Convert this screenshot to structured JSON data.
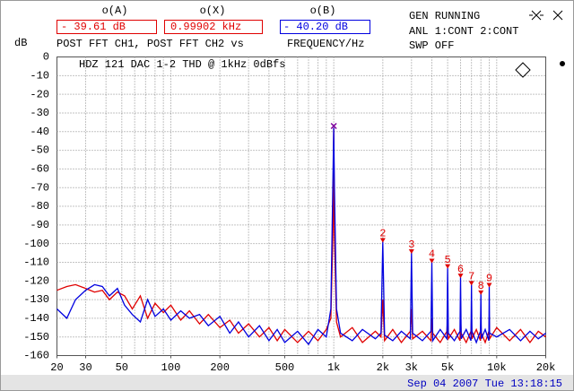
{
  "header": {
    "readouts": [
      {
        "name": "o(A)",
        "value": "- 39.61 dB",
        "color": "#e00000"
      },
      {
        "name": "o(X)",
        "value": "0.99902 kHz",
        "color": "#e00000"
      },
      {
        "name": "o(B)",
        "value": "- 40.20 dB",
        "color": "#0000e0"
      }
    ],
    "y_unit": "dB",
    "trace_label": "POST FFT CH1, POST FFT CH2 vs",
    "x_label": "FREQUENCY/Hz",
    "status": [
      "GEN RUNNING",
      "ANL 1:CONT 2:CONT",
      "SWP OFF"
    ]
  },
  "chart_data": {
    "type": "line",
    "title": "HDZ 121 DAC 1-2 THD @ 1kHz 0dBfs",
    "log_x": true,
    "grid": true,
    "xlim": [
      20,
      20000
    ],
    "ylim": [
      -160,
      0
    ],
    "yticks": [
      0,
      -10,
      -20,
      -30,
      -40,
      -50,
      -60,
      -70,
      -80,
      -90,
      -100,
      -110,
      -120,
      -130,
      -140,
      -150,
      -160
    ],
    "xticks": [
      20,
      30,
      50,
      100,
      200,
      500,
      {
        "value": 1000,
        "label": "1k"
      },
      {
        "value": 2000,
        "label": "2k"
      },
      {
        "value": 3000,
        "label": "3k"
      },
      {
        "value": 5000,
        "label": "5k"
      },
      {
        "value": 10000,
        "label": "10k"
      },
      {
        "value": 20000,
        "label": "20k"
      }
    ],
    "x": [
      20,
      23,
      26,
      30,
      34,
      38,
      42,
      47,
      52,
      58,
      65,
      72,
      80,
      90,
      100,
      115,
      130,
      150,
      170,
      200,
      230,
      260,
      300,
      350,
      400,
      450,
      500,
      600,
      700,
      800,
      900,
      960,
      990,
      1000,
      1010,
      1040,
      1100,
      1300,
      1500,
      1800,
      1950,
      2000,
      2050,
      2300,
      2600,
      2950,
      3000,
      3050,
      3500,
      3950,
      4000,
      4050,
      4500,
      4950,
      5000,
      5050,
      5500,
      5950,
      6000,
      6050,
      6500,
      6950,
      7000,
      7050,
      7500,
      7950,
      8000,
      8050,
      8500,
      8950,
      9000,
      9050,
      10000,
      12000,
      14000,
      16000,
      18000,
      20000
    ],
    "series": [
      {
        "color": "#e00000",
        "values": [
          -125,
          -123,
          -122,
          -124,
          -126,
          -125,
          -130,
          -126,
          -128,
          -135,
          -128,
          -140,
          -132,
          -137,
          -133,
          -141,
          -136,
          -143,
          -138,
          -145,
          -141,
          -148,
          -143,
          -150,
          -145,
          -152,
          -146,
          -153,
          -147,
          -152,
          -146,
          -140,
          -90,
          -38,
          -95,
          -142,
          -150,
          -145,
          -153,
          -147,
          -150,
          -130,
          -152,
          -146,
          -153,
          -147,
          -135,
          -151,
          -147,
          -152,
          -140,
          -148,
          -153,
          -147,
          -140,
          -151,
          -146,
          -152,
          -138,
          -148,
          -153,
          -147,
          -140,
          -151,
          -146,
          -152,
          -142,
          -148,
          -153,
          -147,
          -140,
          -151,
          -145,
          -152,
          -146,
          -153,
          -147,
          -150
        ]
      },
      {
        "color": "#0000e0",
        "values": [
          -135,
          -140,
          -130,
          -125,
          -122,
          -123,
          -128,
          -124,
          -133,
          -138,
          -142,
          -130,
          -139,
          -135,
          -141,
          -136,
          -140,
          -138,
          -144,
          -139,
          -148,
          -142,
          -150,
          -144,
          -152,
          -146,
          -153,
          -147,
          -154,
          -146,
          -150,
          -135,
          -60,
          -38,
          -70,
          -135,
          -148,
          -152,
          -146,
          -151,
          -148,
          -99,
          -149,
          -152,
          -147,
          -151,
          -105,
          -148,
          -152,
          -147,
          -110,
          -152,
          -146,
          -151,
          -113,
          -148,
          -152,
          -147,
          -118,
          -151,
          -146,
          -152,
          -122,
          -147,
          -153,
          -147,
          -127,
          -151,
          -146,
          -152,
          -123,
          -148,
          -150,
          -146,
          -152,
          -147,
          -151,
          -148
        ]
      }
    ],
    "cursor": {
      "x": 1000,
      "value": -37
    },
    "markers": [
      {
        "label": "2",
        "x": 2000,
        "value": -99
      },
      {
        "label": "3",
        "x": 3000,
        "value": -105
      },
      {
        "label": "4",
        "x": 4000,
        "value": -110
      },
      {
        "label": "5",
        "x": 5000,
        "value": -113
      },
      {
        "label": "6",
        "x": 6000,
        "value": -118
      },
      {
        "label": "7",
        "x": 7000,
        "value": -122
      },
      {
        "label": "8",
        "x": 8000,
        "value": -127
      },
      {
        "label": "9",
        "x": 9000,
        "value": -123
      }
    ],
    "marker_color": "#e00000",
    "cursor_color": "#8000a0"
  },
  "footer": {
    "timestamp": "Sep 04 2007 Tue 13:18:15"
  }
}
